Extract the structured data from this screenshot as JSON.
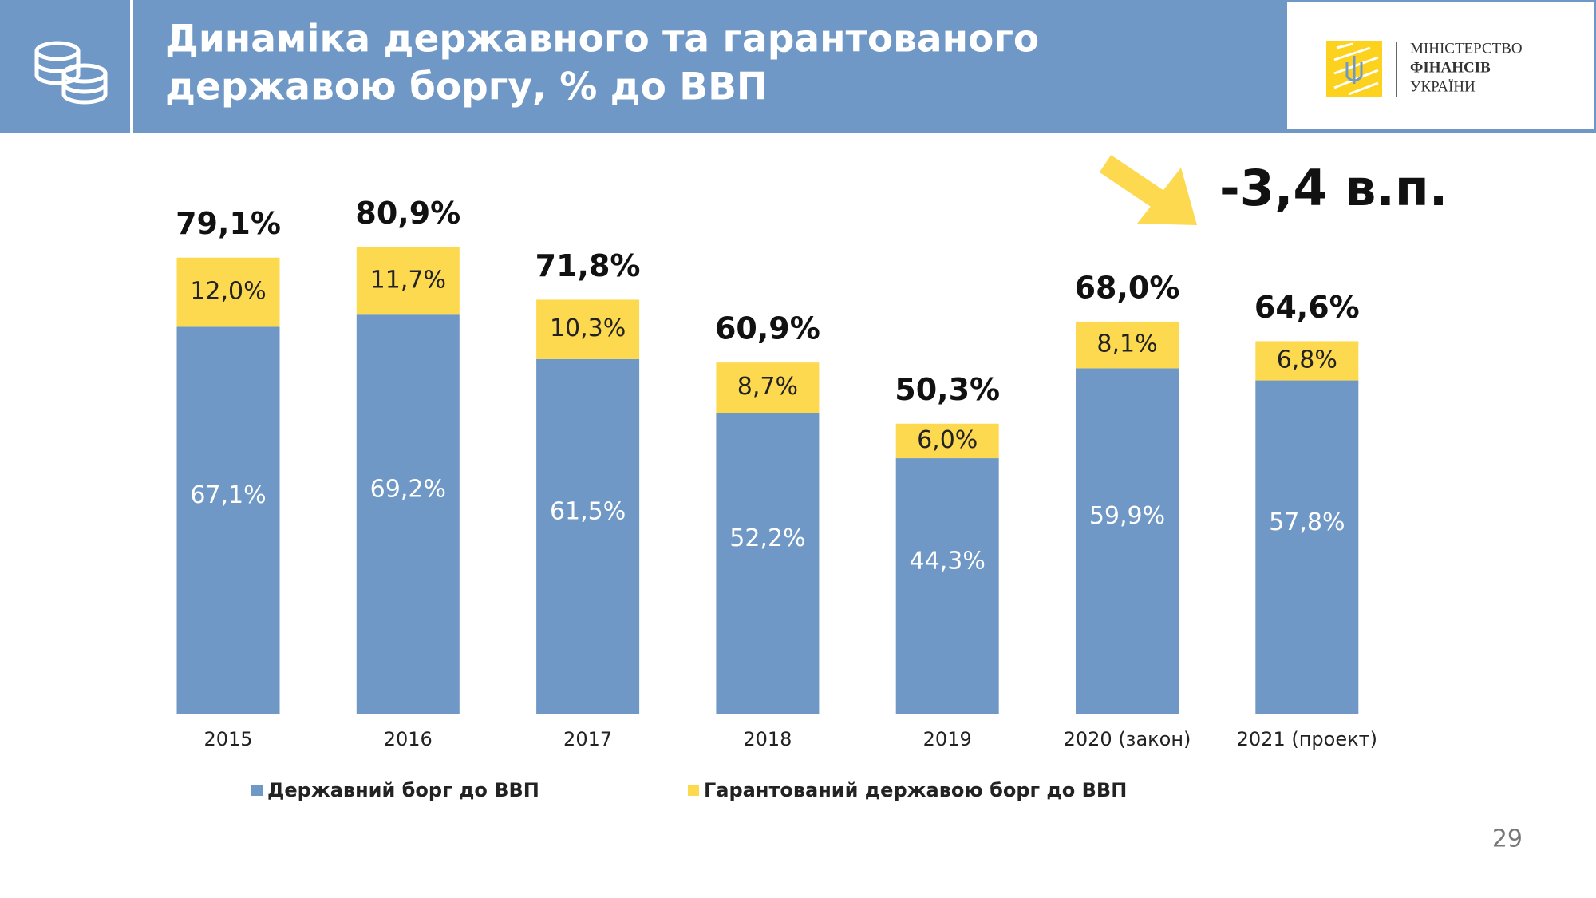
{
  "header": {
    "title_lines": [
      "Динаміка державного та гарантованого",
      "державою боргу, % до ВВП"
    ]
  },
  "logo": {
    "lines": [
      "МІНІСТЕРСТВО",
      "ФІНАНСІВ",
      "УКРАЇНИ"
    ]
  },
  "page_number": "29",
  "chart_data": {
    "type": "stacked_bar",
    "categories": [
      "2015",
      "2016",
      "2017",
      "2018",
      "2019",
      "2020 (закон)",
      "2021 (проект)"
    ],
    "series": [
      {
        "name": "Державний борг до ВВП",
        "color": "#6f98c6",
        "values": [
          67.1,
          69.2,
          61.5,
          52.2,
          44.3,
          59.9,
          57.8
        ],
        "value_labels": [
          "67,1%",
          "69,2%",
          "61,5%",
          "52,2%",
          "44,3%",
          "59,9%",
          "57,8%"
        ]
      },
      {
        "name": "Гарантований державою борг до ВВП",
        "color": "#fdd94f",
        "values": [
          12.0,
          11.7,
          10.3,
          8.7,
          6.0,
          8.1,
          6.8
        ],
        "value_labels": [
          "12,0%",
          "11,7%",
          "10,3%",
          "8,7%",
          "6,0%",
          "8,1%",
          "6,8%"
        ]
      }
    ],
    "totals": [
      79.1,
      80.9,
      71.8,
      60.9,
      50.3,
      68.0,
      64.6
    ],
    "total_labels": [
      "79,1%",
      "80,9%",
      "71,8%",
      "60,9%",
      "50,3%",
      "68,0%",
      "64,6%"
    ],
    "ylim": [
      0,
      90
    ],
    "annotation": "-3,4 в.п."
  }
}
